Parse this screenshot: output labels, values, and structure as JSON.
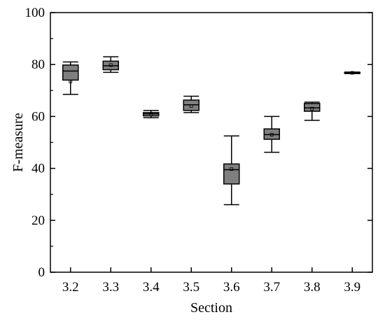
{
  "chart_data": {
    "type": "box",
    "title": "",
    "xlabel": "Section",
    "ylabel": "F-measure",
    "ylim": [
      0,
      100
    ],
    "yticks": [
      0,
      20,
      40,
      60,
      80,
      100
    ],
    "grid": false,
    "legend": "none",
    "box_fill": "#7f7f7f",
    "categories": [
      "3.2",
      "3.3",
      "3.4",
      "3.5",
      "3.6",
      "3.7",
      "3.8",
      "3.9"
    ],
    "boxes": [
      {
        "category": "3.2",
        "whisker_low": 68.5,
        "q1": 74.0,
        "median": 77.5,
        "q3": 79.8,
        "whisker_high": 81.0,
        "mean": 73.5
      },
      {
        "category": "3.3",
        "whisker_low": 77.0,
        "q1": 78.0,
        "median": 79.5,
        "q3": 81.3,
        "whisker_high": 83.0,
        "mean": 79.8
      },
      {
        "category": "3.4",
        "whisker_low": 59.5,
        "q1": 60.2,
        "median": 61.0,
        "q3": 61.5,
        "whisker_high": 62.3,
        "mean": 60.8
      },
      {
        "category": "3.5",
        "whisker_low": 61.5,
        "q1": 62.3,
        "median": 64.5,
        "q3": 66.3,
        "whisker_high": 67.8,
        "mean": 64.0
      },
      {
        "category": "3.6",
        "whisker_low": 26.0,
        "q1": 34.0,
        "median": 39.5,
        "q3": 41.7,
        "whisker_high": 52.5,
        "mean": 39.7
      },
      {
        "category": "3.7",
        "whisker_low": 46.2,
        "q1": 51.2,
        "median": 53.0,
        "q3": 55.2,
        "whisker_high": 60.0,
        "mean": 53.0
      },
      {
        "category": "3.8",
        "whisker_low": 58.5,
        "q1": 62.0,
        "median": 63.3,
        "q3": 65.0,
        "whisker_high": 65.5,
        "mean": 63.0
      },
      {
        "category": "3.9",
        "whisker_low": 76.5,
        "q1": 76.6,
        "median": 76.8,
        "q3": 77.0,
        "whisker_high": 77.1,
        "mean": 76.8
      }
    ]
  }
}
